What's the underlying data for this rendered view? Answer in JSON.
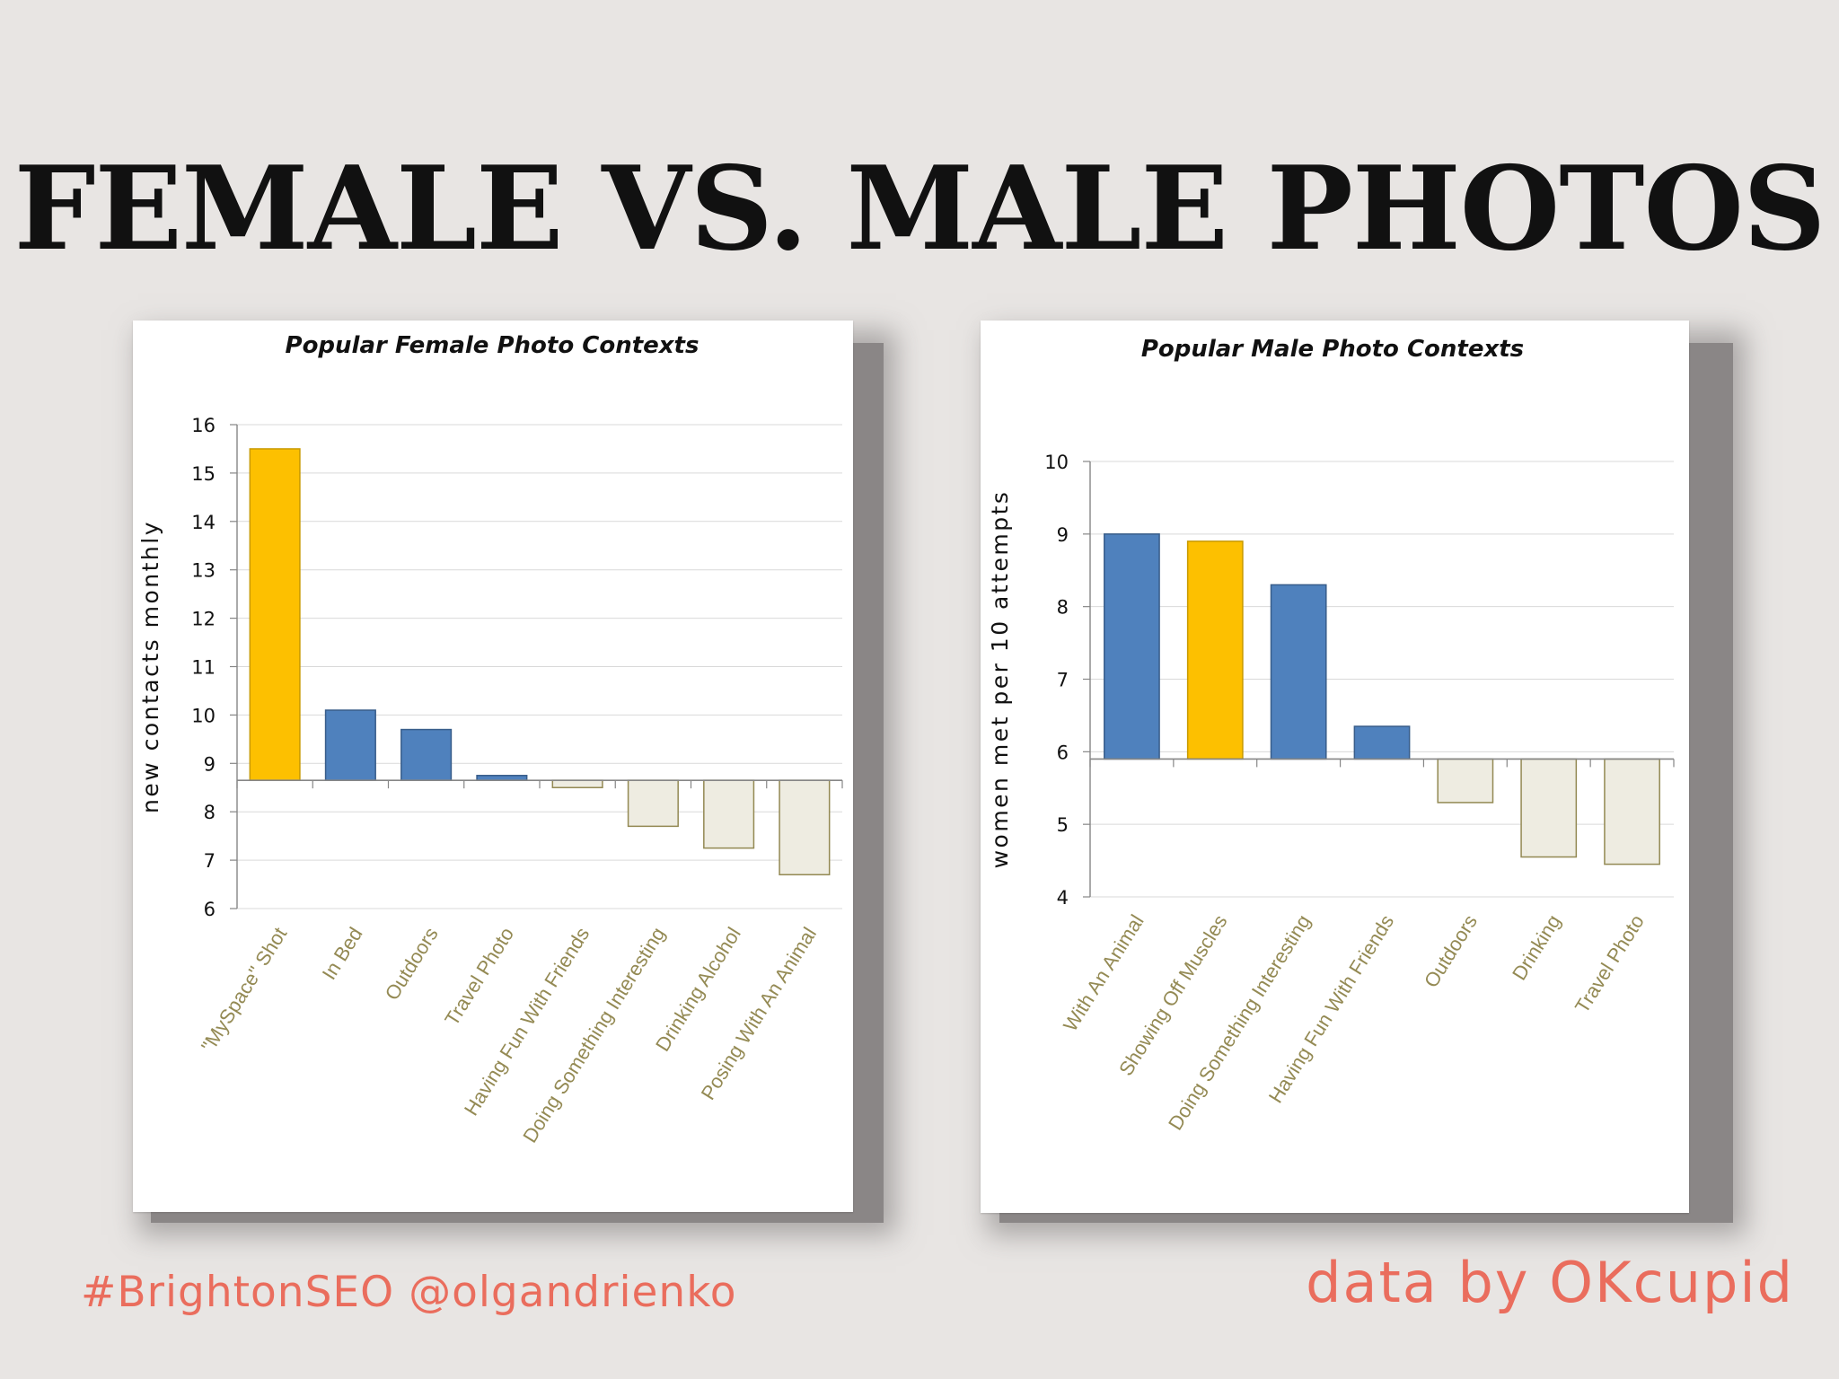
{
  "slide": {
    "title": "FEMALE VS. MALE PHOTOS",
    "footer_left": "#BrightonSEO @olgandrienko",
    "footer_right": "data by OKcupid"
  },
  "colors": {
    "background": "#e8e5e3",
    "highlight_bar": "#fdc000",
    "positive_bar": "#4f81bd",
    "negative_bar": "#eeece1",
    "negative_bar_border": "#938953",
    "category_label": "#948a54",
    "footer": "#ea6d5d"
  },
  "chart_data": [
    {
      "type": "bar",
      "title": "Popular Female Photo Contexts",
      "ylabel": "new contacts monthly",
      "xlabel": "",
      "ylim": [
        6,
        16
      ],
      "yticks": [
        6,
        7,
        8,
        9,
        10,
        11,
        12,
        13,
        14,
        15,
        16
      ],
      "baseline": 8.65,
      "grid": true,
      "categories": [
        "\"MySpace\" Shot",
        "In Bed",
        "Outdoors",
        "Travel Photo",
        "Having Fun With Friends",
        "Doing Something Interesting",
        "Drinking Alcohol",
        "Posing With An Animal"
      ],
      "values": [
        15.5,
        10.1,
        9.7,
        8.75,
        8.5,
        7.7,
        7.25,
        6.7
      ],
      "highlight_index": 0
    },
    {
      "type": "bar",
      "title": "Popular Male Photo Contexts",
      "ylabel": "women met per 10 attempts",
      "xlabel": "",
      "ylim": [
        4,
        10
      ],
      "yticks": [
        4,
        5,
        6,
        7,
        8,
        9,
        10
      ],
      "baseline": 5.9,
      "grid": true,
      "categories": [
        "With An Animal",
        "Showing Off Muscles",
        "Doing Something Interesting",
        "Having Fun With Friends",
        "Outdoors",
        "Drinking",
        "Travel Photo"
      ],
      "values": [
        9.0,
        8.9,
        8.3,
        6.35,
        5.3,
        4.55,
        4.45
      ],
      "highlight_index": 1
    }
  ]
}
